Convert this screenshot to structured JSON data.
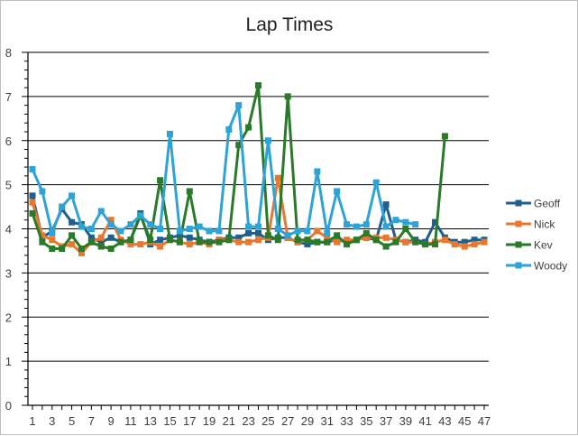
{
  "chart_data": {
    "type": "line",
    "title": "Lap Times",
    "xlabel": "",
    "ylabel": "",
    "ylim": [
      0,
      8
    ],
    "yticks": [
      0,
      1,
      2,
      3,
      4,
      5,
      6,
      7,
      8
    ],
    "x": [
      1,
      2,
      3,
      4,
      5,
      6,
      7,
      8,
      9,
      10,
      11,
      12,
      13,
      14,
      15,
      16,
      17,
      18,
      19,
      20,
      21,
      22,
      23,
      24,
      25,
      26,
      27,
      28,
      29,
      30,
      31,
      32,
      33,
      34,
      35,
      36,
      37,
      38,
      39,
      40,
      41,
      42,
      43,
      44,
      45,
      46,
      47
    ],
    "xtick_labels": [
      "1",
      "3",
      "5",
      "7",
      "9",
      "11",
      "13",
      "15",
      "17",
      "19",
      "21",
      "23",
      "25",
      "27",
      "29",
      "31",
      "33",
      "35",
      "37",
      "39",
      "41",
      "43",
      "45",
      "47"
    ],
    "grid": true,
    "legend_position": "right",
    "marker": "square",
    "series": [
      {
        "name": "Geoff",
        "color": "#1f5f8b",
        "values": [
          4.75,
          3.8,
          3.95,
          4.45,
          4.15,
          4.1,
          3.8,
          3.7,
          3.8,
          3.7,
          3.75,
          4.35,
          3.65,
          3.75,
          3.8,
          3.85,
          3.8,
          3.75,
          3.7,
          3.75,
          3.8,
          3.8,
          3.9,
          3.9,
          3.75,
          3.8,
          3.8,
          3.7,
          3.65,
          3.7,
          3.7,
          3.75,
          3.7,
          3.75,
          3.8,
          3.75,
          4.55,
          3.75,
          3.7,
          3.75,
          3.7,
          4.15,
          3.8,
          3.7,
          3.7,
          3.75,
          3.75
        ]
      },
      {
        "name": "Nick",
        "color": "#e8782e",
        "values": [
          4.6,
          3.85,
          3.75,
          3.6,
          3.65,
          3.45,
          3.7,
          3.8,
          4.2,
          3.75,
          3.65,
          3.65,
          3.7,
          3.6,
          3.75,
          3.7,
          3.65,
          3.7,
          3.65,
          3.75,
          3.75,
          3.7,
          3.7,
          3.75,
          3.8,
          5.15,
          3.8,
          3.7,
          3.75,
          3.95,
          3.8,
          3.7,
          3.75,
          3.75,
          3.8,
          3.8,
          3.8,
          3.75,
          3.7,
          3.7,
          3.65,
          3.7,
          3.75,
          3.65,
          3.6,
          3.65,
          3.7
        ]
      },
      {
        "name": "Kev",
        "color": "#2a7a2a",
        "values": [
          4.35,
          3.7,
          3.55,
          3.55,
          3.85,
          3.55,
          3.7,
          3.6,
          3.55,
          3.7,
          3.75,
          4.3,
          3.75,
          5.1,
          3.75,
          3.7,
          4.85,
          3.7,
          3.7,
          3.7,
          3.75,
          5.9,
          6.3,
          7.25,
          3.85,
          3.75,
          7.0,
          3.75,
          3.75,
          3.7,
          3.7,
          3.85,
          3.65,
          3.75,
          3.9,
          3.75,
          3.6,
          3.7,
          4.0,
          3.7,
          3.65,
          3.65,
          6.1,
          null,
          null,
          null,
          null
        ]
      },
      {
        "name": "Woody",
        "color": "#2ea3d6",
        "values": [
          5.35,
          4.85,
          3.9,
          4.5,
          4.75,
          4.05,
          4.0,
          4.4,
          4.1,
          3.95,
          4.1,
          4.3,
          4.1,
          4.0,
          6.15,
          3.95,
          4.0,
          4.05,
          3.95,
          3.95,
          6.25,
          6.8,
          4.05,
          4.05,
          6.0,
          4.0,
          3.85,
          3.95,
          3.95,
          5.3,
          3.9,
          4.85,
          4.1,
          4.05,
          4.1,
          5.05,
          4.05,
          4.2,
          4.15,
          4.1,
          null,
          null,
          null,
          null,
          null,
          null,
          null
        ]
      }
    ]
  }
}
